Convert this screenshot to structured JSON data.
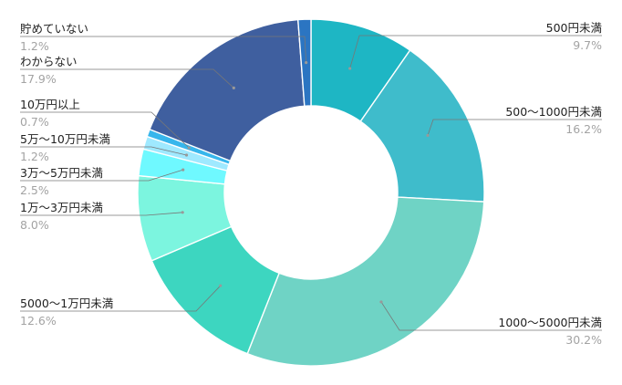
{
  "chart_data": {
    "type": "donut",
    "title": "",
    "slices": [
      {
        "label": "500円未満",
        "pct_text": "9.7%",
        "value": 9.7,
        "color": "#1eb6c4"
      },
      {
        "label": "500〜1000円未満",
        "pct_text": "16.2%",
        "value": 16.2,
        "color": "#3fbccb"
      },
      {
        "label": "1000〜5000円未満",
        "pct_text": "30.2%",
        "value": 30.2,
        "color": "#6fd3c5"
      },
      {
        "label": "5000〜1万円未満",
        "pct_text": "12.6%",
        "value": 12.6,
        "color": "#3dd6c0"
      },
      {
        "label": "1万〜3万円未満",
        "pct_text": "8.0%",
        "value": 8.0,
        "color": "#7cf5df"
      },
      {
        "label": "3万〜5万円未満",
        "pct_text": "2.5%",
        "value": 2.5,
        "color": "#6ff9ff"
      },
      {
        "label": "5万〜10万円未満",
        "pct_text": "1.2%",
        "value": 1.2,
        "color": "#9fe9ff"
      },
      {
        "label": "10万円以上",
        "pct_text": "0.7%",
        "value": 0.7,
        "color": "#37b6ec"
      },
      {
        "label": "わからない",
        "pct_text": "17.9%",
        "value": 17.9,
        "color": "#3f5f9f"
      },
      {
        "label": "貯めていない",
        "pct_text": "1.2%",
        "value": 1.2,
        "color": "#2b75c2"
      }
    ],
    "legend": "outside-labels"
  }
}
